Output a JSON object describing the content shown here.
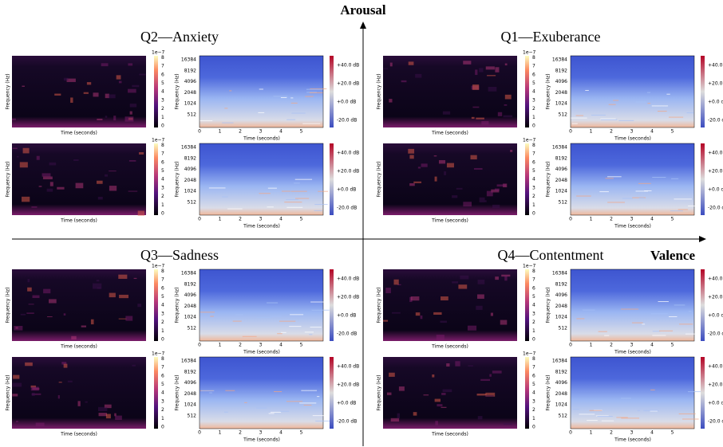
{
  "axes": {
    "vertical": "Arousal",
    "horizontal": "Valence"
  },
  "quadrants": [
    {
      "title": "Q2—Anxiety"
    },
    {
      "title": "Q1—Exuberance"
    },
    {
      "title": "Q3—Sadness"
    },
    {
      "title": "Q4—Contentment"
    }
  ],
  "mel_panel": {
    "scale": "1e−7",
    "colorbar_ticks": [
      0,
      1,
      2,
      3,
      4,
      5,
      6,
      7,
      8
    ],
    "xlabel": "Time (seconds)",
    "ylabel": "Frequency (Hz)"
  },
  "stft_panel": {
    "xlabel": "Time (seconds)",
    "ylabel": "Frequency (Hz)",
    "yticks": [
      16384,
      8192,
      4096,
      2048,
      1024,
      512
    ],
    "xticks": [
      0,
      1,
      2,
      3,
      4,
      5
    ],
    "colorbar_ticks": [
      "+40.0 dB",
      "+20.0 dB",
      "+0.0 dB",
      "-20.0 dB"
    ]
  }
}
